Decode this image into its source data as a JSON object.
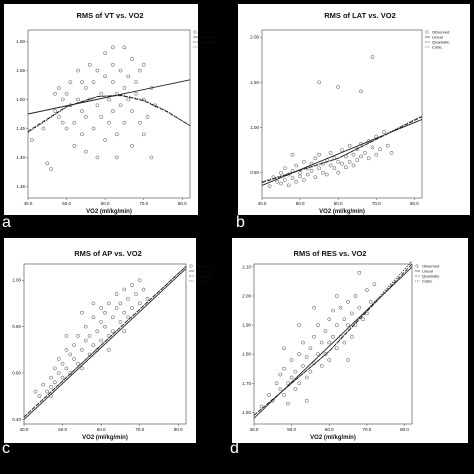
{
  "colors": {
    "background": "#000000",
    "panel": "#ffffff",
    "marker": "#333333",
    "fit": "#222222"
  },
  "panel_letters": [
    "a",
    "b",
    "c",
    "d"
  ],
  "legend_entries": [
    "Observed",
    "Linear",
    "Quadratic",
    "Cubic"
  ],
  "chart_data": [
    {
      "type": "scatter",
      "title": "RMS of VT vs. VO2",
      "xlabel": "VO2 (ml/kg/min)",
      "ylabel": "",
      "xlim": [
        40,
        82
      ],
      "ylim": [
        1.33,
        1.62
      ],
      "xticks": [
        "40.0",
        "50.0",
        "60.0",
        "70.0",
        "80.0"
      ],
      "yticks": [
        "1.35",
        "1.40",
        "1.45",
        "1.50",
        "1.55",
        "1.60"
      ],
      "ytick_values": [
        1.35,
        1.4,
        1.45,
        1.5,
        1.55,
        1.6
      ],
      "legend": "top-right",
      "fits": {
        "linear": [
          [
            40,
            1.475
          ],
          [
            82,
            1.534
          ]
        ],
        "quadratic": [
          [
            40,
            1.445
          ],
          [
            50,
            1.488
          ],
          [
            58,
            1.505
          ],
          [
            64,
            1.507
          ],
          [
            70,
            1.498
          ],
          [
            76,
            1.479
          ],
          [
            82,
            1.455
          ]
        ],
        "cubic": [
          [
            40,
            1.443
          ],
          [
            50,
            1.487
          ],
          [
            58,
            1.505
          ],
          [
            64,
            1.508
          ],
          [
            70,
            1.499
          ],
          [
            76,
            1.48
          ],
          [
            82,
            1.455
          ]
        ]
      },
      "points": [
        [
          41,
          1.43
        ],
        [
          44,
          1.45
        ],
        [
          45,
          1.39
        ],
        [
          46,
          1.38
        ],
        [
          47,
          1.51
        ],
        [
          47,
          1.48
        ],
        [
          48,
          1.52
        ],
        [
          48,
          1.47
        ],
        [
          49,
          1.5
        ],
        [
          49,
          1.46
        ],
        [
          50,
          1.45
        ],
        [
          50,
          1.51
        ],
        [
          51,
          1.53
        ],
        [
          51,
          1.49
        ],
        [
          52,
          1.42
        ],
        [
          52,
          1.46
        ],
        [
          53,
          1.55
        ],
        [
          53,
          1.5
        ],
        [
          54,
          1.48
        ],
        [
          54,
          1.44
        ],
        [
          55,
          1.52
        ],
        [
          55,
          1.47
        ],
        [
          55,
          1.41
        ],
        [
          56,
          1.5
        ],
        [
          56,
          1.56
        ],
        [
          57,
          1.45
        ],
        [
          57,
          1.53
        ],
        [
          58,
          1.49
        ],
        [
          58,
          1.4
        ],
        [
          59,
          1.51
        ],
        [
          59,
          1.47
        ],
        [
          60,
          1.54
        ],
        [
          60,
          1.58
        ],
        [
          60,
          1.43
        ],
        [
          61,
          1.5
        ],
        [
          61,
          1.46
        ],
        [
          62,
          1.53
        ],
        [
          62,
          1.48
        ],
        [
          62,
          1.56
        ],
        [
          63,
          1.51
        ],
        [
          63,
          1.44
        ],
        [
          63,
          1.4
        ],
        [
          64,
          1.55
        ],
        [
          64,
          1.49
        ],
        [
          65,
          1.52
        ],
        [
          65,
          1.46
        ],
        [
          65,
          1.59
        ],
        [
          66,
          1.5
        ],
        [
          66,
          1.54
        ],
        [
          67,
          1.48
        ],
        [
          67,
          1.57
        ],
        [
          67,
          1.42
        ],
        [
          68,
          1.53
        ],
        [
          68,
          1.51
        ],
        [
          69,
          1.46
        ],
        [
          69,
          1.55
        ],
        [
          70,
          1.5
        ],
        [
          70,
          1.44
        ],
        [
          71,
          1.47
        ],
        [
          72,
          1.52
        ],
        [
          73,
          1.49
        ],
        [
          62,
          1.59
        ],
        [
          58,
          1.55
        ],
        [
          54,
          1.53
        ],
        [
          70,
          1.56
        ],
        [
          72,
          1.4
        ]
      ]
    },
    {
      "type": "scatter",
      "title": "RMS of LAT vs. VO2",
      "xlabel": "VO2 (ml/kg/min)",
      "ylabel": "",
      "xlim": [
        40,
        82
      ],
      "ylim": [
        0.22,
        2.08
      ],
      "xticks": [
        "40.0",
        "50.0",
        "60.0",
        "70.0",
        "80.0"
      ],
      "yticks": [
        "0.50",
        "1.00",
        "1.50",
        "2.00"
      ],
      "ytick_values": [
        0.5,
        1.0,
        1.5,
        2.0
      ],
      "legend": "top-right",
      "fits": {
        "linear": [
          [
            40,
            0.36
          ],
          [
            82,
            1.09
          ]
        ],
        "quadratic": [
          [
            40,
            0.39
          ],
          [
            60,
            0.66
          ],
          [
            82,
            1.12
          ]
        ],
        "cubic": [
          [
            40,
            0.4
          ],
          [
            60,
            0.66
          ],
          [
            82,
            1.13
          ]
        ]
      },
      "points": [
        [
          42,
          0.35
        ],
        [
          43,
          0.45
        ],
        [
          44,
          0.4
        ],
        [
          45,
          0.5
        ],
        [
          45,
          0.38
        ],
        [
          46,
          0.42
        ],
        [
          46,
          0.55
        ],
        [
          47,
          0.48
        ],
        [
          47,
          0.36
        ],
        [
          48,
          0.52
        ],
        [
          48,
          0.44
        ],
        [
          49,
          0.4
        ],
        [
          49,
          0.58
        ],
        [
          50,
          0.5
        ],
        [
          50,
          0.46
        ],
        [
          51,
          0.62
        ],
        [
          51,
          0.42
        ],
        [
          52,
          0.55
        ],
        [
          52,
          0.48
        ],
        [
          53,
          0.6
        ],
        [
          53,
          0.52
        ],
        [
          54,
          0.45
        ],
        [
          54,
          0.66
        ],
        [
          55,
          0.55
        ],
        [
          55,
          0.7
        ],
        [
          56,
          0.5
        ],
        [
          56,
          0.6
        ],
        [
          57,
          0.64
        ],
        [
          57,
          0.48
        ],
        [
          58,
          0.58
        ],
        [
          58,
          0.72
        ],
        [
          59,
          0.55
        ],
        [
          59,
          0.66
        ],
        [
          60,
          0.62
        ],
        [
          60,
          0.5
        ],
        [
          61,
          0.75
        ],
        [
          61,
          0.6
        ],
        [
          62,
          0.68
        ],
        [
          62,
          0.56
        ],
        [
          63,
          0.8
        ],
        [
          63,
          0.62
        ],
        [
          64,
          0.7
        ],
        [
          64,
          0.58
        ],
        [
          65,
          0.76
        ],
        [
          65,
          0.64
        ],
        [
          66,
          0.82
        ],
        [
          66,
          0.68
        ],
        [
          67,
          0.72
        ],
        [
          68,
          0.85
        ],
        [
          68,
          0.66
        ],
        [
          69,
          0.78
        ],
        [
          70,
          0.9
        ],
        [
          70,
          0.7
        ],
        [
          71,
          0.76
        ],
        [
          72,
          0.95
        ],
        [
          73,
          0.8
        ],
        [
          74,
          0.72
        ],
        [
          55,
          1.5
        ],
        [
          60,
          1.45
        ],
        [
          69,
          1.78
        ],
        [
          66,
          1.4
        ],
        [
          48,
          0.7
        ]
      ]
    },
    {
      "type": "scatter",
      "title": "RMS of AP vs. VO2",
      "xlabel": "VO2 (ml/kg/min)",
      "ylabel": "",
      "xlim": [
        40,
        82
      ],
      "ylim": [
        0.38,
        1.07
      ],
      "xticks": [
        "40.0",
        "50.0",
        "60.0",
        "70.0",
        "80.0"
      ],
      "yticks": [
        "0.40",
        "0.60",
        "0.80",
        "1.00"
      ],
      "ytick_values": [
        0.4,
        0.6,
        0.8,
        1.0
      ],
      "legend": "top-right",
      "fits": {
        "linear": [
          [
            40,
            0.4
          ],
          [
            82,
            1.05
          ]
        ],
        "quadratic": [
          [
            40,
            0.41
          ],
          [
            60,
            0.72
          ],
          [
            82,
            1.06
          ]
        ],
        "cubic": [
          [
            40,
            0.41
          ],
          [
            60,
            0.72
          ],
          [
            82,
            1.06
          ]
        ]
      },
      "points": [
        [
          43,
          0.52
        ],
        [
          44,
          0.5
        ],
        [
          45,
          0.55
        ],
        [
          46,
          0.52
        ],
        [
          47,
          0.58
        ],
        [
          47,
          0.54
        ],
        [
          48,
          0.62
        ],
        [
          48,
          0.56
        ],
        [
          49,
          0.6
        ],
        [
          49,
          0.66
        ],
        [
          50,
          0.58
        ],
        [
          50,
          0.64
        ],
        [
          51,
          0.62
        ],
        [
          51,
          0.7
        ],
        [
          52,
          0.6
        ],
        [
          52,
          0.68
        ],
        [
          53,
          0.66
        ],
        [
          53,
          0.72
        ],
        [
          54,
          0.64
        ],
        [
          54,
          0.76
        ],
        [
          55,
          0.7
        ],
        [
          55,
          0.62
        ],
        [
          56,
          0.74
        ],
        [
          56,
          0.8
        ],
        [
          57,
          0.68
        ],
        [
          57,
          0.76
        ],
        [
          58,
          0.72
        ],
        [
          58,
          0.84
        ],
        [
          59,
          0.78
        ],
        [
          59,
          0.7
        ],
        [
          60,
          0.82
        ],
        [
          60,
          0.88
        ],
        [
          60,
          0.74
        ],
        [
          61,
          0.8
        ],
        [
          61,
          0.86
        ],
        [
          62,
          0.76
        ],
        [
          62,
          0.9
        ],
        [
          63,
          0.84
        ],
        [
          63,
          0.78
        ],
        [
          64,
          0.88
        ],
        [
          64,
          0.94
        ],
        [
          65,
          0.82
        ],
        [
          65,
          0.9
        ],
        [
          66,
          0.86
        ],
        [
          66,
          0.96
        ],
        [
          67,
          0.92
        ],
        [
          67,
          0.84
        ],
        [
          68,
          0.88
        ],
        [
          68,
          0.98
        ],
        [
          69,
          0.94
        ],
        [
          70,
          0.9
        ],
        [
          70,
          1.0
        ],
        [
          71,
          0.96
        ],
        [
          72,
          0.92
        ],
        [
          55,
          0.86
        ],
        [
          58,
          0.9
        ],
        [
          62,
          0.7
        ],
        [
          66,
          0.78
        ],
        [
          51,
          0.76
        ],
        [
          47,
          0.5
        ]
      ]
    },
    {
      "type": "scatter",
      "title": "RMS of RES vs. VO2",
      "xlabel": "VO2 (ml/kg/min)",
      "ylabel": "",
      "xlim": [
        40,
        82
      ],
      "ylim": [
        1.56,
        2.11
      ],
      "xticks": [
        "40.0",
        "50.0",
        "60.0",
        "70.0",
        "80.0"
      ],
      "yticks": [
        "1.60",
        "1.70",
        "1.80",
        "1.90",
        "2.00",
        "2.10"
      ],
      "ytick_values": [
        1.6,
        1.7,
        1.8,
        1.9,
        2.0,
        2.1
      ],
      "legend": "top-right",
      "fits": {
        "linear": [
          [
            40,
            1.58
          ],
          [
            82,
            2.1
          ]
        ],
        "quadratic": [
          [
            40,
            1.59
          ],
          [
            60,
            1.81
          ],
          [
            82,
            2.11
          ]
        ],
        "cubic": [
          [
            40,
            1.59
          ],
          [
            60,
            1.81
          ],
          [
            82,
            2.12
          ]
        ]
      },
      "points": [
        [
          42,
          1.62
        ],
        [
          44,
          1.66
        ],
        [
          45,
          1.64
        ],
        [
          46,
          1.7
        ],
        [
          47,
          1.68
        ],
        [
          47,
          1.73
        ],
        [
          48,
          1.66
        ],
        [
          48,
          1.75
        ],
        [
          49,
          1.7
        ],
        [
          49,
          1.63
        ],
        [
          50,
          1.72
        ],
        [
          50,
          1.78
        ],
        [
          51,
          1.68
        ],
        [
          51,
          1.74
        ],
        [
          52,
          1.8
        ],
        [
          52,
          1.7
        ],
        [
          53,
          1.76
        ],
        [
          53,
          1.84
        ],
        [
          54,
          1.72
        ],
        [
          54,
          1.79
        ],
        [
          55,
          1.82
        ],
        [
          55,
          1.74
        ],
        [
          56,
          1.86
        ],
        [
          56,
          1.77
        ],
        [
          57,
          1.8
        ],
        [
          57,
          1.9
        ],
        [
          58,
          1.76
        ],
        [
          58,
          1.84
        ],
        [
          59,
          1.88
        ],
        [
          59,
          1.8
        ],
        [
          60,
          1.92
        ],
        [
          60,
          1.84
        ],
        [
          60,
          1.78
        ],
        [
          61,
          1.86
        ],
        [
          61,
          1.95
        ],
        [
          62,
          1.82
        ],
        [
          62,
          1.9
        ],
        [
          63,
          1.96
        ],
        [
          63,
          1.86
        ],
        [
          64,
          1.92
        ],
        [
          64,
          1.84
        ],
        [
          65,
          1.98
        ],
        [
          65,
          1.9
        ],
        [
          66,
          1.94
        ],
        [
          66,
          1.86
        ],
        [
          67,
          2.0
        ],
        [
          67,
          1.9
        ],
        [
          68,
          1.96
        ],
        [
          69,
          1.92
        ],
        [
          70,
          2.02
        ],
        [
          70,
          1.94
        ],
        [
          71,
          1.98
        ],
        [
          72,
          2.04
        ],
        [
          52,
          1.9
        ],
        [
          56,
          1.96
        ],
        [
          62,
          2.0
        ],
        [
          68,
          2.08
        ],
        [
          48,
          1.82
        ],
        [
          54,
          1.64
        ],
        [
          65,
          1.78
        ]
      ]
    }
  ]
}
